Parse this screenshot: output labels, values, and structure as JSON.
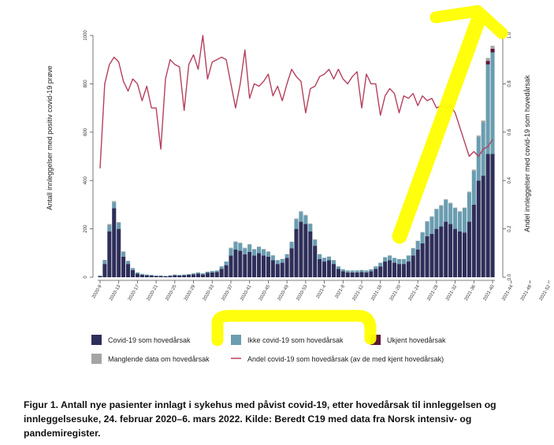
{
  "caption": "Figur 1. Antall nye pasienter innlagt i sykehus med påvist covid-19, etter hovedårsak til innleggelsen og innleggelsesuke, 24. februar 2020–6. mars 2022. Kilde: Beredt C19 med data fra Norsk intensiv- og pandemiregister.",
  "colors": {
    "covid": "#2e2e5a",
    "ikke_covid": "#6a9db0",
    "ukjent": "#5c1638",
    "manglende": "#a4a4a4",
    "andel": "#b5405c",
    "highlight": "#ffff00"
  },
  "chart_data": {
    "type": "bar",
    "ylabel_left": "Antall innleggelser med positiv covid-19 prøve",
    "ylabel_right": "Andel innleggelser med covid-19 som hovedårsak",
    "ylim_left": [
      0,
      1000
    ],
    "ylim_right": [
      0,
      1.0
    ],
    "yticks_left": [
      "0",
      "200",
      "400",
      "600",
      "800",
      "1000"
    ],
    "yticks_right": [
      "0.0",
      "0.2",
      "0.4",
      "0.6",
      "0.8",
      "1.0"
    ],
    "xtick_labels": [
      "2020-9",
      "2020-13",
      "2020-17",
      "2020-21",
      "2020-25",
      "2020-29",
      "2020-33",
      "2020-37",
      "2020-41",
      "2020-45",
      "2020-49",
      "2020-53",
      "2021-4",
      "2021-8",
      "2021-12",
      "2021-16",
      "2021-20",
      "2021-24",
      "2021-28",
      "2021-32",
      "2021-36",
      "2021-40",
      "2021-44",
      "2021-48",
      "2021-52",
      "2022-4",
      "2022-8"
    ],
    "stacked": true,
    "series": [
      {
        "name": "Covid-19 som hovedårsak",
        "key": "covid",
        "values": [
          5,
          55,
          190,
          285,
          200,
          85,
          55,
          30,
          15,
          10,
          8,
          7,
          5,
          5,
          4,
          6,
          8,
          7,
          8,
          10,
          12,
          15,
          12,
          18,
          20,
          22,
          35,
          50,
          90,
          115,
          110,
          95,
          105,
          90,
          100,
          90,
          85,
          70,
          55,
          60,
          80,
          120,
          200,
          230,
          220,
          190,
          130,
          75,
          65,
          70,
          55,
          35,
          25,
          20,
          20,
          20,
          22,
          20,
          25,
          35,
          45,
          65,
          70,
          60,
          55,
          55,
          65,
          90,
          115,
          140,
          170,
          180,
          200,
          210,
          230,
          220,
          200,
          190,
          185,
          230,
          300,
          400,
          420,
          510,
          510
        ]
      },
      {
        "name": "Ikke covid-19 som hovedårsak",
        "key": "ikke_covid",
        "values": [
          1,
          15,
          25,
          25,
          25,
          20,
          12,
          8,
          5,
          4,
          3,
          3,
          2,
          2,
          2,
          2,
          3,
          3,
          3,
          3,
          4,
          5,
          4,
          5,
          6,
          6,
          10,
          15,
          30,
          30,
          30,
          25,
          30,
          25,
          25,
          25,
          20,
          20,
          15,
          15,
          15,
          25,
          40,
          40,
          35,
          30,
          25,
          20,
          15,
          15,
          15,
          10,
          8,
          8,
          8,
          8,
          8,
          8,
          8,
          10,
          15,
          18,
          20,
          20,
          20,
          20,
          25,
          30,
          35,
          45,
          60,
          70,
          80,
          85,
          90,
          85,
          85,
          80,
          100,
          120,
          140,
          180,
          220,
          370,
          420
        ]
      },
      {
        "name": "Ukjent hovedårsak",
        "key": "ukjent",
        "values": [
          0,
          0,
          0,
          0,
          0,
          0,
          0,
          0,
          0,
          0,
          0,
          0,
          0,
          0,
          0,
          0,
          0,
          0,
          0,
          0,
          0,
          0,
          0,
          0,
          0,
          0,
          0,
          0,
          0,
          0,
          0,
          0,
          0,
          0,
          0,
          0,
          0,
          0,
          0,
          0,
          0,
          0,
          0,
          0,
          0,
          0,
          0,
          0,
          0,
          0,
          0,
          0,
          0,
          0,
          0,
          0,
          0,
          0,
          0,
          0,
          0,
          0,
          0,
          0,
          0,
          0,
          0,
          0,
          0,
          0,
          0,
          0,
          0,
          0,
          0,
          0,
          0,
          0,
          0,
          0,
          0,
          0,
          0,
          15,
          15
        ]
      },
      {
        "name": "Manglende data om hovedårsak",
        "key": "manglende",
        "values": [
          0,
          2,
          5,
          5,
          3,
          2,
          1,
          0,
          0,
          0,
          0,
          0,
          0,
          0,
          0,
          0,
          0,
          0,
          0,
          0,
          0,
          0,
          0,
          0,
          0,
          0,
          0,
          0,
          2,
          3,
          3,
          2,
          2,
          2,
          2,
          2,
          2,
          1,
          1,
          1,
          1,
          2,
          3,
          3,
          3,
          2,
          2,
          1,
          1,
          1,
          1,
          0,
          0,
          0,
          0,
          0,
          0,
          0,
          0,
          0,
          0,
          0,
          0,
          0,
          0,
          0,
          0,
          1,
          1,
          2,
          2,
          2,
          3,
          3,
          3,
          3,
          3,
          3,
          3,
          4,
          5,
          6,
          8,
          12,
          12
        ]
      },
      {
        "name": "Andel covid-19 som hovedårsak (av de med kjent hovedårsak)",
        "key": "andel",
        "chart_type": "line",
        "values": [
          0.45,
          0.8,
          0.88,
          0.91,
          0.89,
          0.81,
          0.77,
          0.82,
          0.8,
          0.73,
          0.79,
          0.7,
          0.7,
          0.53,
          0.82,
          0.9,
          0.88,
          0.87,
          0.69,
          0.88,
          0.92,
          0.86,
          1.0,
          0.82,
          0.89,
          0.9,
          0.91,
          0.9,
          0.8,
          0.7,
          0.8,
          0.94,
          0.74,
          0.8,
          0.79,
          0.81,
          0.84,
          0.75,
          0.79,
          0.73,
          0.8,
          0.86,
          0.83,
          0.81,
          0.68,
          0.78,
          0.79,
          0.83,
          0.84,
          0.86,
          0.82,
          0.86,
          0.82,
          0.8,
          0.83,
          0.85,
          0.7,
          0.84,
          0.8,
          0.8,
          0.67,
          0.75,
          0.78,
          0.76,
          0.68,
          0.75,
          0.74,
          0.76,
          0.71,
          0.75,
          0.73,
          0.74,
          0.7,
          0.71,
          0.7,
          0.71,
          0.68,
          0.62,
          0.56,
          0.5,
          0.52,
          0.5,
          0.53,
          0.54,
          0.57
        ]
      }
    ],
    "legend": [
      {
        "label": "Covid-19 som hovedårsak",
        "key": "covid",
        "kind": "box"
      },
      {
        "label": "Ikke covid-19 som hovedårsak",
        "key": "ikke_covid",
        "kind": "box"
      },
      {
        "label": "Ukjent hovedårsak",
        "key": "ukjent",
        "kind": "box"
      },
      {
        "label": "Manglende data om hovedårsak",
        "key": "manglende",
        "kind": "box"
      },
      {
        "label": "Andel covid-19 som hovedårsak (av de med kjent hovedårsak)",
        "key": "andel",
        "kind": "line"
      }
    ],
    "legend_position": "bottom",
    "grid": false
  }
}
